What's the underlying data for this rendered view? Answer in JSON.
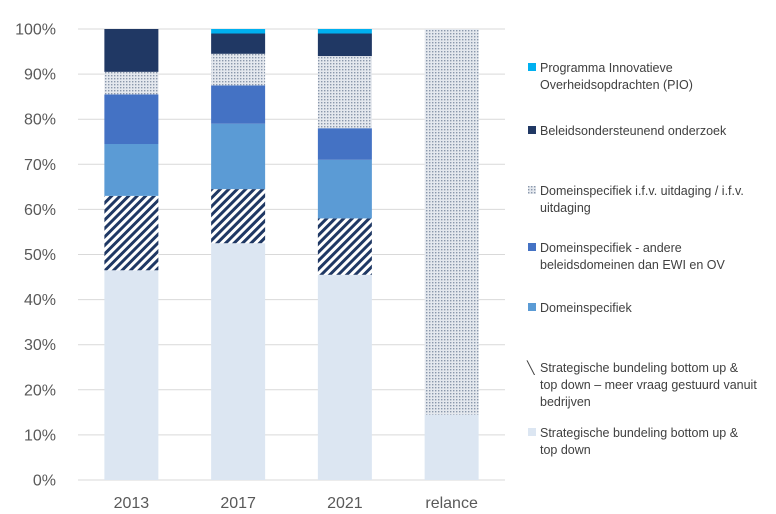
{
  "chart_data": {
    "type": "bar",
    "stacked": true,
    "title": "",
    "xlabel": "",
    "ylabel": "",
    "ylim": [
      0,
      100
    ],
    "y_tick_suffix": "%",
    "yticks": [
      0,
      10,
      20,
      30,
      40,
      50,
      60,
      70,
      80,
      90,
      100
    ],
    "grid": true,
    "legend_position": "right",
    "categories": [
      "2013",
      "2017",
      "2021",
      "relance"
    ],
    "series": [
      {
        "name": "Strategische bundeling bottom up & top down",
        "color": "#dce6f2",
        "pattern": "solid",
        "values": [
          46.5,
          52.5,
          45.5,
          14.5
        ]
      },
      {
        "name": "Strategische bundeling bottom up & top down – meer vraag gestuurd vanuit bedrijven",
        "color": "#1f3864",
        "pattern": "diagonal-hatch",
        "values": [
          16.5,
          12.0,
          12.5,
          0
        ]
      },
      {
        "name": "Domeinspecifiek",
        "color": "#5b9bd5",
        "pattern": "solid",
        "values": [
          11.5,
          14.5,
          13.0,
          0
        ]
      },
      {
        "name": "Domeinspecifiek - andere beleidsdomeinen dan EWI en OV",
        "color": "#4472c4",
        "pattern": "solid",
        "values": [
          11.0,
          8.5,
          7.0,
          0
        ]
      },
      {
        "name": "Domeinspecifiek i.f.v. uitdaging / i.f.v. uitdaging",
        "color": "#adb9ca",
        "pattern": "dotted",
        "values": [
          5.0,
          7.0,
          16.0,
          85.5
        ]
      },
      {
        "name": "Beleidsondersteunend onderzoek",
        "color": "#203864",
        "pattern": "solid",
        "values": [
          9.5,
          4.5,
          5.0,
          0
        ]
      },
      {
        "name": "Programma Innovatieve Overheidsopdrachten (PIO)",
        "color": "#00b0f0",
        "pattern": "solid",
        "values": [
          0,
          1.0,
          1.0,
          0
        ]
      }
    ],
    "legend": [
      {
        "series_index": 6,
        "lines": [
          "Programma Innovatieve",
          "Overheidsopdrachten (PIO)"
        ]
      },
      {
        "series_index": 5,
        "lines": [
          "Beleidsondersteunend onderzoek"
        ]
      },
      {
        "series_index": 4,
        "lines": [
          "Domeinspecifiek i.f.v. uitdaging / i.f.v.",
          "uitdaging"
        ]
      },
      {
        "series_index": 3,
        "lines": [
          "Domeinspecifiek - andere",
          "beleidsdomeinen dan EWI en OV"
        ]
      },
      {
        "series_index": 2,
        "lines": [
          "Domeinspecifiek"
        ]
      },
      {
        "series_index": 1,
        "lines": [
          "Strategische bundeling bottom up &",
          "top down – meer vraag gestuurd vanuit",
          "bedrijven"
        ]
      },
      {
        "series_index": 0,
        "lines": [
          "Strategische bundeling bottom up &",
          "top down"
        ]
      }
    ]
  }
}
